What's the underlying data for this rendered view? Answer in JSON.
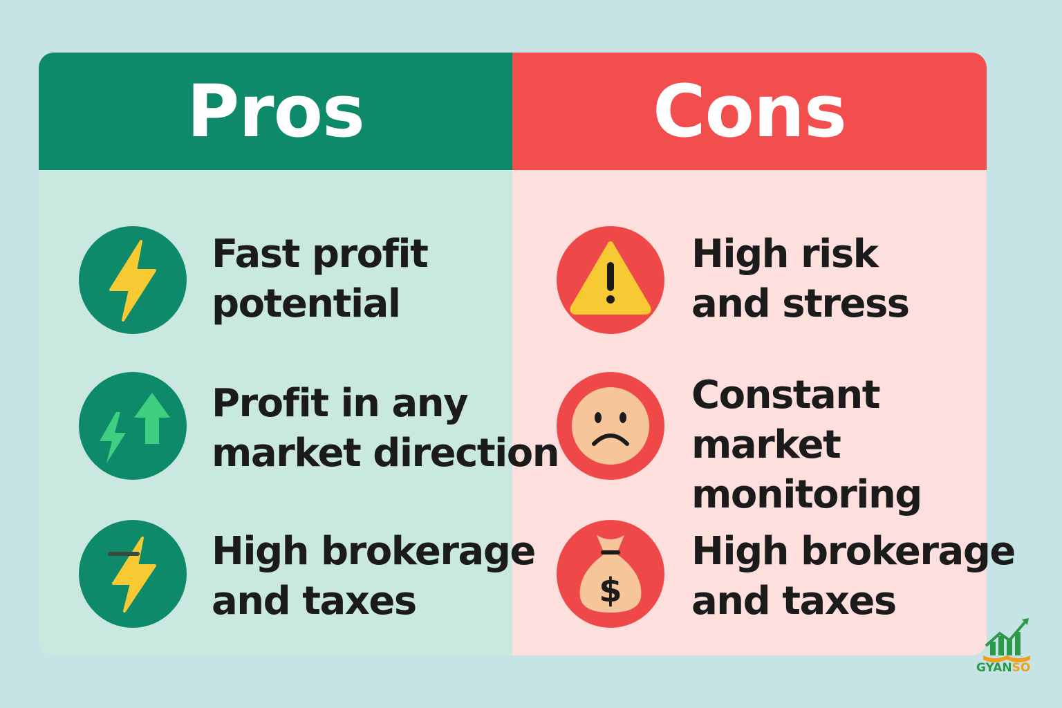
{
  "pros": {
    "title": "Pros",
    "items": [
      {
        "line1": "Fast profit",
        "line2": "potential",
        "icon": "lightning-bolt-icon"
      },
      {
        "line1": "Profit in any",
        "line2": "market direction",
        "icon": "up-down-arrows-icon"
      },
      {
        "line1": "High brokerage",
        "line2": "and taxes",
        "icon": "lightning-bolt-icon"
      }
    ]
  },
  "cons": {
    "title": "Cons",
    "items": [
      {
        "line1": "High risk",
        "line2": "and stress",
        "icon": "warning-icon"
      },
      {
        "line1": "Constant",
        "line2": "market",
        "line3": "monitoring",
        "icon": "sad-face-icon"
      },
      {
        "line1": "High brokerage",
        "line2": "and taxes",
        "icon": "money-bag-icon"
      }
    ]
  },
  "logo": {
    "part1": "GYAN",
    "part2": "SO"
  },
  "colors": {
    "background": "#c6e3e6",
    "pros_header": "#0e8a6a",
    "pros_body": "#c9e8df",
    "cons_header": "#f24e4e",
    "cons_body": "#fde0dd",
    "icon_yellow": "#f7c932"
  }
}
